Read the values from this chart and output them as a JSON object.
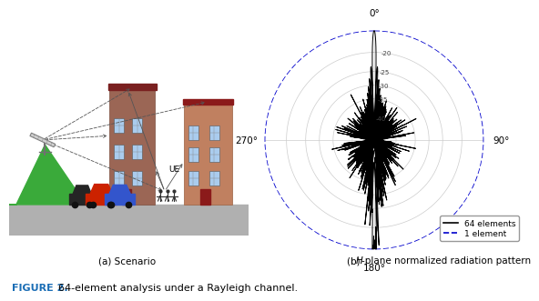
{
  "title": "FIGURE 2.",
  "caption": "64-element analysis under a Rayleigh channel.",
  "title_color": "#1A6DB5",
  "sub_a_label": "(a) Scenario",
  "sub_b_label": "(b)  H-plane normalized radiation pattern",
  "legend_64": "64 elements",
  "legend_1": "1 element",
  "line_64_color": "#000000",
  "line_1_color": "#0000cc",
  "background_color": "#ffffff",
  "db_labels": [
    "-20",
    "-25",
    "-30",
    "-35",
    "-40"
  ],
  "db_radii": [
    0.8,
    0.625,
    0.5,
    0.375,
    0.2
  ]
}
